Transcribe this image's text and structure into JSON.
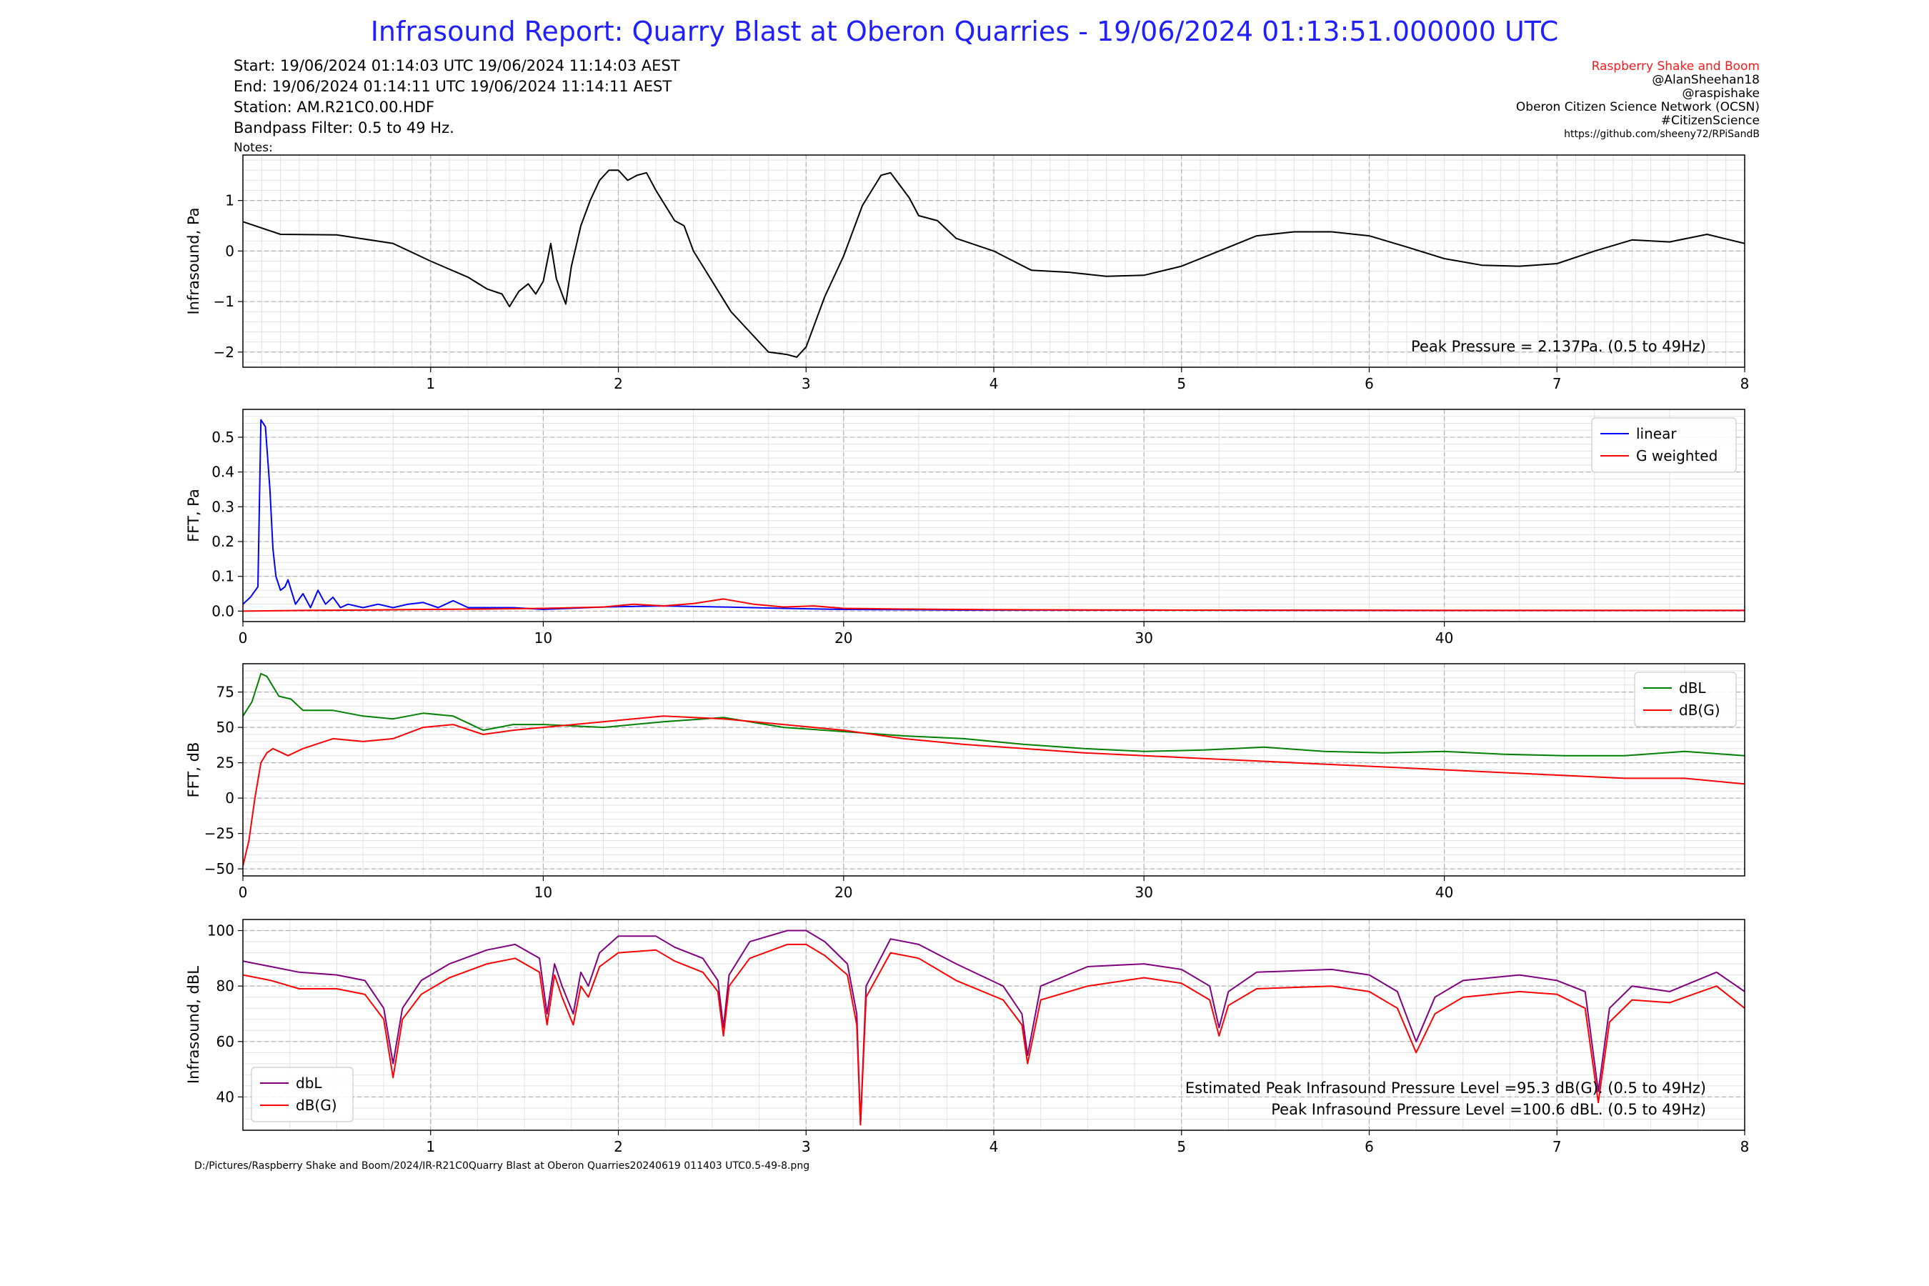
{
  "title": "Infrasound Report: Quarry Blast at Oberon Quarries - 19/06/2024 01:13:51.000000 UTC",
  "header": {
    "start": "Start: 19/06/2024 01:14:03 UTC   19/06/2024 11:14:03 AEST",
    "end": "End: 19/06/2024 01:14:11 UTC   19/06/2024 11:14:11 AEST",
    "station": "Station: AM.R21C0.00.HDF",
    "filter": "Bandpass Filter: 0.5 to 49 Hz.",
    "notes": "Notes:"
  },
  "credits": [
    "Raspberry Shake and Boom",
    "@AlanSheehan18",
    "@raspishake",
    "Oberon Citizen Science Network (OCSN)",
    "#CitizenScience",
    "https://github.com/sheeny72/RPiSandB"
  ],
  "footer": "D:/Pictures/Raspberry Shake and Boom/2024/IR-R21C0Quarry Blast at Oberon Quarries20240619 011403 UTC0.5-49-8.png",
  "colors": {
    "title": "#1f1fff",
    "brand": "#ff1a1a",
    "linear": "#0000ff",
    "g_weighted": "#ff0000",
    "dbl_fft": "#008000",
    "dbl_time": "#800080",
    "waveform": "#000000"
  },
  "chart_data": [
    {
      "type": "line",
      "ylabel": "Infrasound, Pa",
      "xlim": [
        0,
        8
      ],
      "ylim": [
        -2.3,
        1.9
      ],
      "xticks": [
        1,
        2,
        3,
        4,
        5,
        6,
        7,
        8
      ],
      "yticks": [
        -2,
        -1,
        0,
        1
      ],
      "grid": true,
      "annotation": "Peak Pressure = 2.137Pa. (0.5 to 49Hz)",
      "series": [
        {
          "color": "#000000",
          "x": [
            0,
            0.2,
            0.5,
            0.8,
            1.0,
            1.2,
            1.3,
            1.38,
            1.42,
            1.47,
            1.52,
            1.56,
            1.6,
            1.64,
            1.67,
            1.72,
            1.75,
            1.8,
            1.85,
            1.9,
            1.95,
            2.0,
            2.05,
            2.1,
            2.15,
            2.2,
            2.25,
            2.3,
            2.35,
            2.4,
            2.5,
            2.6,
            2.7,
            2.8,
            2.9,
            2.95,
            3.0,
            3.1,
            3.2,
            3.3,
            3.4,
            3.45,
            3.5,
            3.55,
            3.6,
            3.7,
            3.8,
            4.0,
            4.2,
            4.4,
            4.6,
            4.8,
            5.0,
            5.2,
            5.4,
            5.6,
            5.8,
            6.0,
            6.2,
            6.4,
            6.6,
            6.8,
            7.0,
            7.2,
            7.4,
            7.6,
            7.8,
            8.0
          ],
          "y": [
            0.58,
            0.33,
            0.32,
            0.15,
            -0.2,
            -0.52,
            -0.75,
            -0.85,
            -1.1,
            -0.8,
            -0.65,
            -0.85,
            -0.6,
            0.15,
            -0.55,
            -1.05,
            -0.3,
            0.5,
            1.0,
            1.4,
            1.6,
            1.6,
            1.4,
            1.5,
            1.55,
            1.2,
            0.9,
            0.6,
            0.5,
            0.0,
            -0.6,
            -1.2,
            -1.6,
            -2.0,
            -2.05,
            -2.1,
            -1.9,
            -0.9,
            -0.1,
            0.9,
            1.5,
            1.55,
            1.3,
            1.05,
            0.7,
            0.6,
            0.25,
            0.0,
            -0.38,
            -0.42,
            -0.5,
            -0.48,
            -0.3,
            0.0,
            0.3,
            0.38,
            0.38,
            0.3,
            0.08,
            -0.15,
            -0.28,
            -0.3,
            -0.25,
            0.0,
            0.22,
            0.18,
            0.33,
            0.15
          ]
        }
      ]
    },
    {
      "type": "line",
      "ylabel": "FFT, Pa",
      "xlim": [
        0,
        50
      ],
      "ylim": [
        -0.03,
        0.58
      ],
      "xticks": [
        0,
        10,
        20,
        30,
        40
      ],
      "yticks": [
        0.0,
        0.1,
        0.2,
        0.3,
        0.4,
        0.5
      ],
      "grid": true,
      "legend": "top-right",
      "series": [
        {
          "name": "linear",
          "color": "#0000ff",
          "x": [
            0,
            0.25,
            0.5,
            0.6,
            0.75,
            0.9,
            1.0,
            1.1,
            1.25,
            1.4,
            1.5,
            1.75,
            2.0,
            2.25,
            2.5,
            2.75,
            3.0,
            3.25,
            3.5,
            4.0,
            4.5,
            5.0,
            5.5,
            6.0,
            6.5,
            7.0,
            7.5,
            8.0,
            9.0,
            10.0,
            12.0,
            14.0,
            16.0,
            18.0,
            20.0,
            22.0,
            24.0,
            30.0,
            40.0,
            50.0
          ],
          "y": [
            0.02,
            0.04,
            0.07,
            0.55,
            0.53,
            0.35,
            0.18,
            0.1,
            0.06,
            0.07,
            0.09,
            0.02,
            0.05,
            0.01,
            0.06,
            0.02,
            0.04,
            0.01,
            0.02,
            0.01,
            0.02,
            0.01,
            0.02,
            0.025,
            0.01,
            0.03,
            0.01,
            0.01,
            0.01,
            0.005,
            0.012,
            0.015,
            0.012,
            0.008,
            0.005,
            0.004,
            0.003,
            0.003,
            0.002,
            0.002
          ]
        },
        {
          "name": "G weighted",
          "color": "#ff0000",
          "x": [
            0,
            2,
            4,
            6,
            8,
            10,
            12,
            13,
            14,
            15,
            16,
            17,
            18,
            19,
            20,
            22,
            25,
            30,
            40,
            50
          ],
          "y": [
            0.0,
            0.002,
            0.003,
            0.005,
            0.006,
            0.008,
            0.012,
            0.02,
            0.015,
            0.022,
            0.035,
            0.02,
            0.012,
            0.015,
            0.008,
            0.006,
            0.004,
            0.003,
            0.002,
            0.002
          ]
        }
      ]
    },
    {
      "type": "line",
      "ylabel": "FFT, dB",
      "xlim": [
        0,
        50
      ],
      "ylim": [
        -55,
        95
      ],
      "xticks": [
        0,
        10,
        20,
        30,
        40
      ],
      "yticks": [
        -50,
        -25,
        0,
        25,
        50,
        75
      ],
      "grid": true,
      "legend": "top-right",
      "series": [
        {
          "name": "dBL",
          "color": "#008000",
          "x": [
            0,
            0.3,
            0.6,
            0.8,
            1.2,
            1.6,
            2.0,
            3.0,
            4.0,
            5.0,
            6.0,
            7.0,
            8.0,
            9.0,
            10.0,
            12.0,
            14.0,
            16.0,
            18.0,
            20.0,
            22.0,
            24.0,
            26.0,
            28.0,
            30.0,
            32.0,
            34.0,
            36.0,
            38.0,
            40.0,
            42.0,
            44.0,
            46.0,
            48.0,
            50.0
          ],
          "y": [
            58,
            68,
            88,
            86,
            72,
            70,
            62,
            62,
            58,
            56,
            60,
            58,
            48,
            52,
            52,
            50,
            54,
            57,
            50,
            47,
            44,
            42,
            38,
            35,
            33,
            34,
            36,
            33,
            32,
            33,
            31,
            30,
            30,
            33,
            30
          ]
        },
        {
          "name": "dB(G)",
          "color": "#ff0000",
          "x": [
            0,
            0.2,
            0.4,
            0.6,
            0.8,
            1.0,
            1.5,
            2.0,
            3.0,
            4.0,
            5.0,
            6.0,
            7.0,
            8.0,
            9.0,
            10.0,
            12.0,
            14.0,
            16.0,
            18.0,
            20.0,
            22.0,
            24.0,
            26.0,
            28.0,
            30.0,
            32.0,
            34.0,
            36.0,
            38.0,
            40.0,
            42.0,
            44.0,
            46.0,
            48.0,
            50.0
          ],
          "y": [
            -48,
            -30,
            0,
            25,
            32,
            35,
            30,
            35,
            42,
            40,
            42,
            50,
            52,
            45,
            48,
            50,
            54,
            58,
            56,
            52,
            48,
            42,
            38,
            35,
            32,
            30,
            28,
            26,
            24,
            22,
            20,
            18,
            16,
            14,
            14,
            10
          ]
        }
      ]
    },
    {
      "type": "line",
      "ylabel": "Infrasound, dBL",
      "xlim": [
        0,
        8
      ],
      "ylim": [
        28,
        104
      ],
      "xticks": [
        1,
        2,
        3,
        4,
        5,
        6,
        7,
        8
      ],
      "yticks": [
        40,
        60,
        80,
        100
      ],
      "grid": true,
      "legend": "bottom-left",
      "annotations": [
        "Estimated Peak Infrasound Pressure Level =95.3 dB(G). (0.5 to 49Hz)",
        "Peak Infrasound Pressure Level =100.6 dBL. (0.5 to 49Hz)"
      ],
      "series": [
        {
          "name": "dbL",
          "color": "#800080",
          "x": [
            0,
            0.15,
            0.3,
            0.5,
            0.65,
            0.75,
            0.8,
            0.85,
            0.95,
            1.1,
            1.3,
            1.45,
            1.58,
            1.62,
            1.66,
            1.7,
            1.76,
            1.8,
            1.84,
            1.9,
            2.0,
            2.2,
            2.3,
            2.45,
            2.53,
            2.56,
            2.59,
            2.7,
            2.9,
            3.0,
            3.1,
            3.22,
            3.27,
            3.29,
            3.32,
            3.45,
            3.6,
            3.8,
            4.05,
            4.15,
            4.18,
            4.25,
            4.5,
            4.8,
            5.0,
            5.15,
            5.2,
            5.25,
            5.4,
            5.8,
            6.0,
            6.15,
            6.25,
            6.35,
            6.5,
            6.8,
            7.0,
            7.15,
            7.22,
            7.28,
            7.4,
            7.6,
            7.85,
            8.0
          ],
          "y": [
            89,
            87,
            85,
            84,
            82,
            72,
            52,
            72,
            82,
            88,
            93,
            95,
            90,
            70,
            88,
            80,
            70,
            85,
            80,
            92,
            98,
            98,
            94,
            90,
            82,
            65,
            84,
            96,
            100,
            100,
            96,
            88,
            70,
            30,
            80,
            97,
            95,
            88,
            80,
            70,
            55,
            80,
            87,
            88,
            86,
            80,
            65,
            78,
            85,
            86,
            84,
            78,
            60,
            76,
            82,
            84,
            82,
            78,
            42,
            72,
            80,
            78,
            85,
            78
          ]
        },
        {
          "name": "dB(G)",
          "color": "#ff0000",
          "x": [
            0,
            0.15,
            0.3,
            0.5,
            0.65,
            0.75,
            0.8,
            0.85,
            0.95,
            1.1,
            1.3,
            1.45,
            1.58,
            1.62,
            1.66,
            1.7,
            1.76,
            1.8,
            1.84,
            1.9,
            2.0,
            2.2,
            2.3,
            2.45,
            2.53,
            2.56,
            2.59,
            2.7,
            2.9,
            3.0,
            3.1,
            3.22,
            3.27,
            3.29,
            3.32,
            3.45,
            3.6,
            3.8,
            4.05,
            4.15,
            4.18,
            4.25,
            4.5,
            4.8,
            5.0,
            5.15,
            5.2,
            5.25,
            5.4,
            5.8,
            6.0,
            6.15,
            6.25,
            6.35,
            6.5,
            6.8,
            7.0,
            7.15,
            7.22,
            7.28,
            7.4,
            7.6,
            7.85,
            8.0
          ],
          "y": [
            84,
            82,
            79,
            79,
            77,
            68,
            47,
            68,
            77,
            83,
            88,
            90,
            85,
            66,
            84,
            76,
            66,
            80,
            76,
            87,
            92,
            93,
            89,
            85,
            78,
            62,
            80,
            90,
            95,
            95,
            91,
            84,
            66,
            30,
            76,
            92,
            90,
            82,
            75,
            66,
            52,
            75,
            80,
            83,
            81,
            75,
            62,
            73,
            79,
            80,
            78,
            72,
            56,
            70,
            76,
            78,
            77,
            72,
            38,
            67,
            75,
            74,
            80,
            72
          ]
        }
      ]
    }
  ]
}
